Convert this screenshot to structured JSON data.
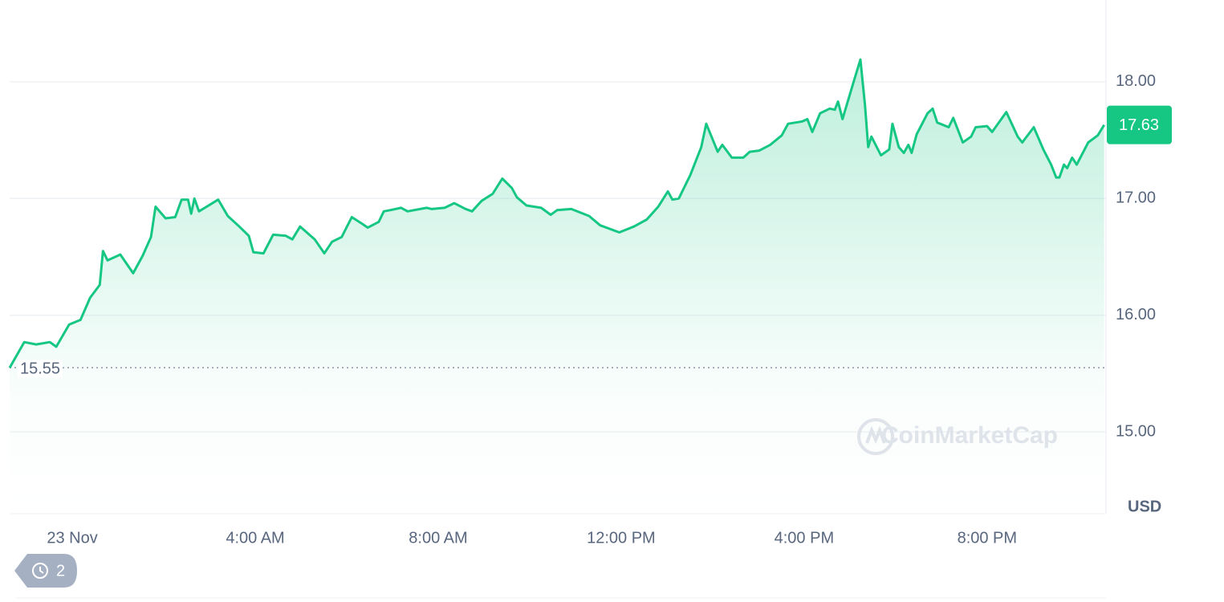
{
  "chart_data": {
    "type": "line",
    "x": [
      -1.37,
      -1.05,
      -0.79,
      -0.49,
      -0.35,
      -0.07,
      0.18,
      0.39,
      0.6,
      0.67,
      0.77,
      1.05,
      1.33,
      1.54,
      1.72,
      1.82,
      2.04,
      2.25,
      2.39,
      2.53,
      2.6,
      2.67,
      2.77,
      3.19,
      3.4,
      3.65,
      3.86,
      3.96,
      4.18,
      4.39,
      4.67,
      4.81,
      4.98,
      5.3,
      5.51,
      5.68,
      5.89,
      6.11,
      6.35,
      6.46,
      6.7,
      6.81,
      6.95,
      7.19,
      7.33,
      7.75,
      7.86,
      8.14,
      8.35,
      8.6,
      8.74,
      8.95,
      9.19,
      9.4,
      9.61,
      9.72,
      9.93,
      10.25,
      10.46,
      10.6,
      10.91,
      11.3,
      11.54,
      11.96,
      12.28,
      12.56,
      12.81,
      13.02,
      13.12,
      13.26,
      13.51,
      13.75,
      13.86,
      14.11,
      14.21,
      14.42,
      14.67,
      14.81,
      15.02,
      15.26,
      15.51,
      15.65,
      15.96,
      16.07,
      16.18,
      16.35,
      16.56,
      16.67,
      16.74,
      16.84,
      17.09,
      17.23,
      17.33,
      17.4,
      17.47,
      17.68,
      17.86,
      17.93,
      18.07,
      18.18,
      18.28,
      18.35,
      18.46,
      18.7,
      18.81,
      18.91,
      19.16,
      19.26,
      19.47,
      19.65,
      19.75,
      20.0,
      20.11,
      20.42,
      20.67,
      20.77,
      21.02,
      21.23,
      21.4,
      21.51,
      21.58,
      21.68,
      21.75,
      21.86,
      21.96,
      22.21,
      22.42,
      22.56
    ],
    "values": [
      15.55,
      15.77,
      15.75,
      15.77,
      15.73,
      15.92,
      15.96,
      16.15,
      16.26,
      16.55,
      16.47,
      16.52,
      16.36,
      16.51,
      16.67,
      16.93,
      16.83,
      16.84,
      16.99,
      16.99,
      16.87,
      17.0,
      16.89,
      16.99,
      16.85,
      16.76,
      16.68,
      16.54,
      16.53,
      16.69,
      16.68,
      16.65,
      16.76,
      16.65,
      16.53,
      16.63,
      16.67,
      16.84,
      16.78,
      16.75,
      16.8,
      16.89,
      16.9,
      16.92,
      16.89,
      16.92,
      16.91,
      16.92,
      16.96,
      16.91,
      16.89,
      16.98,
      17.04,
      17.17,
      17.09,
      17.01,
      16.94,
      16.92,
      16.86,
      16.9,
      16.91,
      16.85,
      16.77,
      16.71,
      16.76,
      16.82,
      16.93,
      17.06,
      16.99,
      17.0,
      17.2,
      17.44,
      17.64,
      17.4,
      17.46,
      17.35,
      17.35,
      17.4,
      17.41,
      17.46,
      17.54,
      17.64,
      17.66,
      17.68,
      17.57,
      17.73,
      17.77,
      17.76,
      17.83,
      17.68,
      18.01,
      18.19,
      17.8,
      17.44,
      17.53,
      17.37,
      17.42,
      17.64,
      17.44,
      17.39,
      17.46,
      17.39,
      17.55,
      17.73,
      17.77,
      17.65,
      17.61,
      17.69,
      17.48,
      17.53,
      17.61,
      17.62,
      17.57,
      17.74,
      17.53,
      17.48,
      17.61,
      17.42,
      17.29,
      17.18,
      17.18,
      17.29,
      17.26,
      17.35,
      17.29,
      17.48,
      17.54,
      17.63
    ],
    "color": "#16c784",
    "xlim": [
      -1.37,
      22.6
    ],
    "xticks": [
      {
        "value": 0,
        "label": "23 Nov"
      },
      {
        "value": 4,
        "label": "4:00 AM"
      },
      {
        "value": 8,
        "label": "8:00 AM"
      },
      {
        "value": 12,
        "label": "12:00 PM"
      },
      {
        "value": 16,
        "label": "4:00 PM"
      },
      {
        "value": 20,
        "label": "8:00 PM"
      }
    ],
    "ylim": [
      14.3,
      18.7
    ],
    "yticks": [
      {
        "value": 15,
        "label": "15.00"
      },
      {
        "value": 16,
        "label": "16.00"
      },
      {
        "value": 17,
        "label": "17.00"
      },
      {
        "value": 18,
        "label": "18.00"
      }
    ],
    "y_unit": "USD",
    "grid": true,
    "watermark": "CoinMarketCap"
  },
  "history_badge": "2"
}
